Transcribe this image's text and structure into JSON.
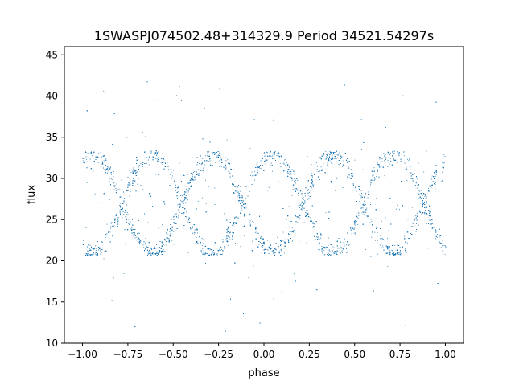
{
  "chart_data": {
    "type": "scatter",
    "title": "1SWASPJ074502.48+314329.9 Period 34521.54297s",
    "xlabel": "phase",
    "ylabel": "flux",
    "xlim": [
      -1.1,
      1.1
    ],
    "ylim": [
      10,
      46
    ],
    "x_ticks": [
      -1.0,
      -0.75,
      -0.5,
      -0.25,
      0.0,
      0.25,
      0.5,
      0.75,
      1.0
    ],
    "x_tick_labels": [
      "−1.00",
      "−0.75",
      "−0.50",
      "−0.25",
      "0.00",
      "0.25",
      "0.50",
      "0.75",
      "1.00"
    ],
    "y_ticks": [
      10,
      15,
      20,
      25,
      30,
      35,
      40,
      45
    ],
    "y_tick_labels": [
      "10",
      "15",
      "20",
      "25",
      "30",
      "35",
      "40",
      "45"
    ],
    "grid": false,
    "legend": "none",
    "marker_color": "#1f77b4",
    "series": [
      {
        "x_range": [
          -1.0,
          1.0
        ],
        "flux_upper_band": [
          28,
          33
        ],
        "flux_lower_band": [
          21,
          23
        ],
        "flux_envelope_peaks": [
          {
            "phase": -0.95,
            "flux": 33
          },
          {
            "phase": -0.62,
            "flux": 33
          },
          {
            "phase": -0.27,
            "flux": 33
          },
          {
            "phase": 0.05,
            "flux": 33
          },
          {
            "phase": 0.38,
            "flux": 33
          },
          {
            "phase": 0.73,
            "flux": 33
          }
        ],
        "flux_envelope_troughs": [
          {
            "phase": -0.78,
            "flux": 21
          },
          {
            "phase": -0.45,
            "flux": 21
          },
          {
            "phase": -0.12,
            "flux": 21
          },
          {
            "phase": 0.22,
            "flux": 21
          },
          {
            "phase": 0.55,
            "flux": 21
          },
          {
            "phase": 0.88,
            "flux": 21
          }
        ],
        "outlier_flux_range": [
          11.5,
          44
        ]
      }
    ]
  }
}
